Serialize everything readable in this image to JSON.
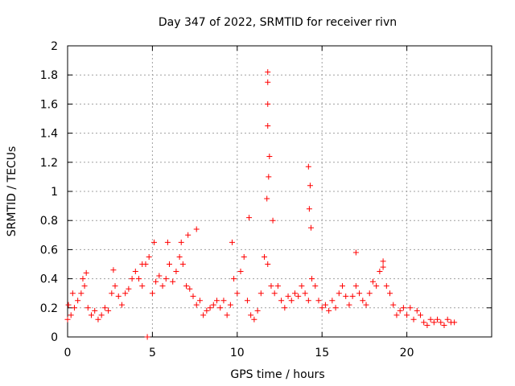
{
  "chart_data": {
    "type": "scatter",
    "title": "Day 347 of 2022, SRMTID for receiver rivn",
    "xlabel": "GPS time / hours",
    "ylabel": "SRMTID / TECUs",
    "xlim": [
      0,
      25
    ],
    "ylim": [
      0,
      2
    ],
    "xticks": [
      0,
      5,
      10,
      15,
      20
    ],
    "xtick_labels": [
      "0",
      "5",
      "10",
      "15",
      "20"
    ],
    "yticks": [
      0,
      0.2,
      0.4,
      0.6,
      0.8,
      1,
      1.2,
      1.4,
      1.6,
      1.8,
      2
    ],
    "ytick_labels": [
      "0",
      "0.2",
      "0.4",
      "0.6",
      "0.8",
      "1",
      "1.2",
      "1.4",
      "1.6",
      "1.8",
      "2"
    ],
    "grid": true,
    "marker": "+",
    "marker_color": "#ff0000",
    "series": [
      {
        "name": "SRMTID",
        "x": [
          0.0,
          0.2,
          0.4,
          0.6,
          0.8,
          1.0,
          1.2,
          1.4,
          1.6,
          1.8,
          2.0,
          2.2,
          2.4,
          2.6,
          2.8,
          3.0,
          3.2,
          3.4,
          3.6,
          3.8,
          4.0,
          4.2,
          4.4,
          4.6,
          4.8,
          5.0,
          5.2,
          5.4,
          5.6,
          5.8,
          6.0,
          6.2,
          6.4,
          6.6,
          6.8,
          7.0,
          7.2,
          7.4,
          7.6,
          7.8,
          8.0,
          8.2,
          8.4,
          8.6,
          8.8,
          9.0,
          9.2,
          9.4,
          9.6,
          9.8,
          10.0,
          10.2,
          10.4,
          10.6,
          10.8,
          11.0,
          11.2,
          11.4,
          11.6,
          11.8,
          12.0,
          12.2,
          12.4,
          12.6,
          12.8,
          13.0,
          13.2,
          13.4,
          13.6,
          13.8,
          14.0,
          14.2,
          14.4,
          14.6,
          14.8,
          15.0,
          15.2,
          15.4,
          15.6,
          15.8,
          16.0,
          16.2,
          16.4,
          16.6,
          16.8,
          17.0,
          17.2,
          17.4,
          17.6,
          17.8,
          18.0,
          18.2,
          18.4,
          18.6,
          18.8,
          19.0,
          19.2,
          19.4,
          19.6,
          19.8,
          20.0,
          20.2,
          20.4,
          20.6,
          20.8,
          21.0,
          21.2,
          21.4,
          21.6,
          21.8,
          22.0,
          22.2,
          22.4,
          22.6,
          22.8,
          4.7,
          0.05,
          0.3,
          0.9,
          1.1,
          2.7,
          4.4,
          5.1,
          5.9,
          6.7,
          7.1,
          7.6,
          9.7,
          10.7,
          11.8,
          11.8,
          11.8,
          11.8,
          11.9,
          11.85,
          11.75,
          12.1,
          14.2,
          14.3,
          14.25,
          14.35,
          17.0,
          18.6
        ],
        "y": [
          0.12,
          0.15,
          0.2,
          0.25,
          0.3,
          0.35,
          0.2,
          0.15,
          0.18,
          0.12,
          0.15,
          0.2,
          0.18,
          0.3,
          0.35,
          0.28,
          0.22,
          0.3,
          0.33,
          0.4,
          0.45,
          0.4,
          0.35,
          0.5,
          0.55,
          0.3,
          0.38,
          0.42,
          0.35,
          0.4,
          0.5,
          0.38,
          0.45,
          0.55,
          0.5,
          0.35,
          0.33,
          0.28,
          0.22,
          0.25,
          0.15,
          0.18,
          0.2,
          0.22,
          0.25,
          0.2,
          0.25,
          0.15,
          0.22,
          0.4,
          0.3,
          0.45,
          0.55,
          0.25,
          0.15,
          0.12,
          0.18,
          0.3,
          0.55,
          0.5,
          0.35,
          0.3,
          0.35,
          0.25,
          0.2,
          0.28,
          0.25,
          0.3,
          0.28,
          0.35,
          0.3,
          0.25,
          0.4,
          0.35,
          0.25,
          0.2,
          0.22,
          0.18,
          0.25,
          0.2,
          0.3,
          0.35,
          0.28,
          0.22,
          0.28,
          0.35,
          0.3,
          0.25,
          0.22,
          0.3,
          0.38,
          0.35,
          0.45,
          0.48,
          0.35,
          0.3,
          0.22,
          0.15,
          0.18,
          0.2,
          0.15,
          0.2,
          0.12,
          0.18,
          0.15,
          0.1,
          0.08,
          0.12,
          0.1,
          0.12,
          0.1,
          0.08,
          0.12,
          0.1,
          0.1,
          0.0,
          0.22,
          0.3,
          0.4,
          0.44,
          0.46,
          0.5,
          0.65,
          0.65,
          0.65,
          0.7,
          0.74,
          0.65,
          0.82,
          1.82,
          1.75,
          1.6,
          1.45,
          1.24,
          1.1,
          0.95,
          0.8,
          1.17,
          1.04,
          0.88,
          0.75,
          0.58,
          0.52
        ]
      }
    ]
  }
}
